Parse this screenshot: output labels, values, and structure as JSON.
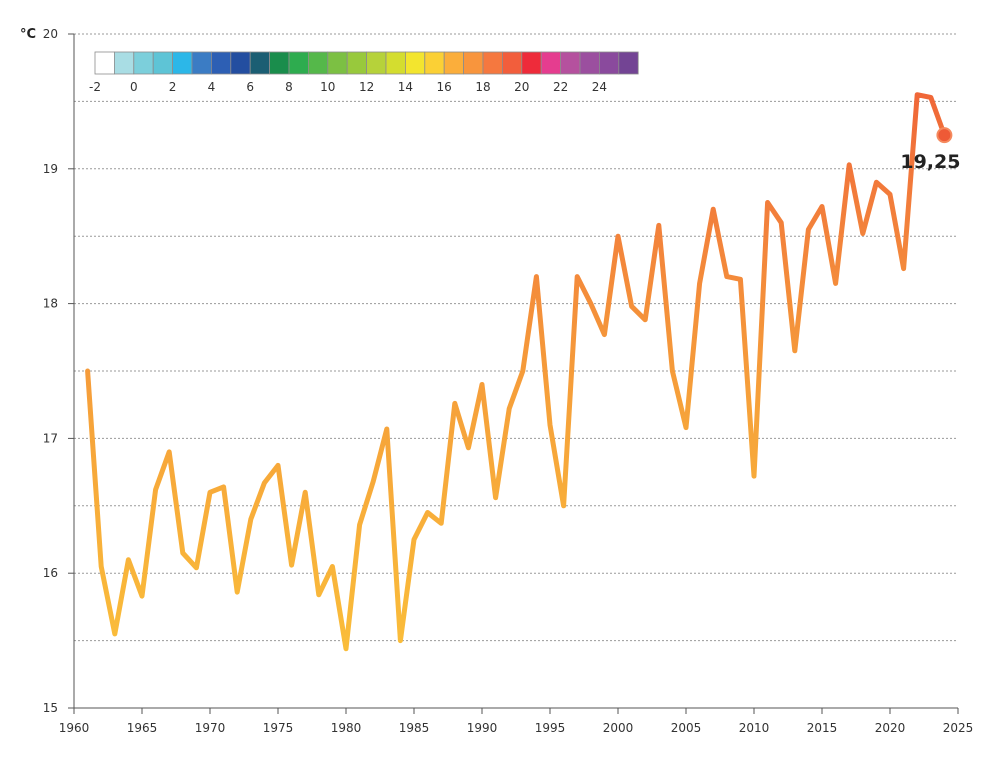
{
  "chart_data": {
    "type": "line",
    "unit_label": "°C",
    "xlim": [
      1960,
      2025
    ],
    "ylim": [
      15,
      20
    ],
    "x_ticks": [
      "1960",
      "1965",
      "1970",
      "1975",
      "1980",
      "1985",
      "1990",
      "1995",
      "2000",
      "2005",
      "2010",
      "2015",
      "2020",
      "2025"
    ],
    "y_ticks": [
      "15",
      "16",
      "17",
      "18",
      "19",
      "20"
    ],
    "grid": "horizontal dashed",
    "series": [
      {
        "x": [
          1961,
          1962,
          1963,
          1964,
          1965,
          1966,
          1967,
          1968,
          1969,
          1970,
          1971,
          1972,
          1973,
          1974,
          1975,
          1976,
          1977,
          1978,
          1979,
          1980,
          1981,
          1982,
          1983,
          1984,
          1985,
          1986,
          1987,
          1988,
          1989,
          1990,
          1991,
          1992,
          1993,
          1994,
          1995,
          1996,
          1997,
          1998,
          1999,
          2000,
          2001,
          2002,
          2003,
          2004,
          2005,
          2006,
          2007,
          2008,
          2009,
          2010,
          2011,
          2012,
          2013,
          2014,
          2015,
          2016,
          2017,
          2018,
          2019,
          2020,
          2021,
          2022,
          2023,
          2024
        ],
        "values": [
          17.5,
          16.05,
          15.55,
          16.1,
          15.83,
          16.62,
          16.9,
          16.15,
          16.04,
          16.6,
          16.64,
          15.86,
          16.4,
          16.67,
          16.8,
          16.06,
          16.6,
          15.84,
          16.05,
          15.44,
          16.36,
          16.68,
          17.07,
          15.5,
          16.25,
          16.45,
          16.37,
          17.26,
          16.93,
          17.4,
          16.56,
          17.22,
          17.5,
          18.2,
          17.1,
          16.5,
          18.2,
          18.0,
          17.77,
          18.5,
          17.98,
          17.88,
          18.58,
          17.5,
          17.08,
          18.15,
          18.7,
          18.2,
          18.18,
          16.72,
          18.75,
          18.6,
          17.65,
          18.55,
          18.72,
          18.15,
          19.03,
          18.52,
          18.9,
          18.81,
          18.26,
          19.55,
          19.53,
          19.25
        ]
      }
    ],
    "end_label": "19,25",
    "color_scale": {
      "labels": [
        "-2",
        "0",
        "2",
        "4",
        "6",
        "8",
        "10",
        "12",
        "14",
        "16",
        "18",
        "20",
        "22",
        "24"
      ],
      "colors": [
        "#ffffff",
        "#a9dde4",
        "#7ccfdb",
        "#5ec4d6",
        "#2cb7e8",
        "#3b7cc4",
        "#2d5fb4",
        "#234ea0",
        "#1b5e73",
        "#1a8d4c",
        "#2eac4f",
        "#55b84a",
        "#7cc043",
        "#98c93c",
        "#b6d23a",
        "#d4dd2f",
        "#f3e52e",
        "#fbd035",
        "#fbae3b",
        "#f8953d",
        "#f5783f",
        "#f25e3c",
        "#ee2b3a",
        "#e53d8f",
        "#b5519e",
        "#9b4f9f",
        "#8a4a9d",
        "#734494"
      ]
    }
  }
}
